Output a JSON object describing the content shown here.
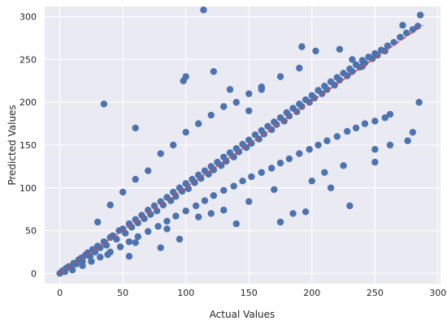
{
  "chart_data": {
    "type": "scatter",
    "title": "",
    "xlabel": "Actual Values",
    "ylabel": "Predicted Values",
    "xlim": [
      -12,
      302
    ],
    "ylim": [
      -12,
      312
    ],
    "xticks": [
      0,
      50,
      100,
      150,
      200,
      250,
      300
    ],
    "yticks": [
      0,
      50,
      100,
      150,
      200,
      250,
      300
    ],
    "grid": true,
    "point_color": "#4c72b0",
    "background_color": "#eaeaf2",
    "reference_line": {
      "style": "dashed",
      "color": "#c44e52",
      "from": [
        0,
        0
      ],
      "to": [
        288,
        290
      ]
    },
    "series": [
      {
        "points": [
          [
            0,
            0
          ],
          [
            2,
            3
          ],
          [
            4,
            2
          ],
          [
            5,
            6
          ],
          [
            7,
            8
          ],
          [
            9,
            7
          ],
          [
            11,
            12
          ],
          [
            13,
            11
          ],
          [
            15,
            16
          ],
          [
            17,
            18
          ],
          [
            18,
            14
          ],
          [
            20,
            21
          ],
          [
            22,
            24
          ],
          [
            24,
            20
          ],
          [
            26,
            28
          ],
          [
            28,
            25
          ],
          [
            30,
            32
          ],
          [
            32,
            30
          ],
          [
            35,
            37
          ],
          [
            37,
            33
          ],
          [
            40,
            42
          ],
          [
            42,
            44
          ],
          [
            45,
            40
          ],
          [
            47,
            50
          ],
          [
            50,
            52
          ],
          [
            52,
            47
          ],
          [
            55,
            58
          ],
          [
            57,
            54
          ],
          [
            60,
            63
          ],
          [
            62,
            59
          ],
          [
            65,
            68
          ],
          [
            67,
            64
          ],
          [
            70,
            74
          ],
          [
            72,
            69
          ],
          [
            75,
            79
          ],
          [
            77,
            73
          ],
          [
            80,
            84
          ],
          [
            82,
            80
          ],
          [
            85,
            89
          ],
          [
            88,
            85
          ],
          [
            90,
            95
          ],
          [
            92,
            90
          ],
          [
            95,
            100
          ],
          [
            97,
            96
          ],
          [
            100,
            105
          ],
          [
            102,
            99
          ],
          [
            105,
            110
          ],
          [
            107,
            106
          ],
          [
            110,
            115
          ],
          [
            112,
            111
          ],
          [
            115,
            120
          ],
          [
            118,
            116
          ],
          [
            120,
            125
          ],
          [
            122,
            121
          ],
          [
            125,
            130
          ],
          [
            128,
            126
          ],
          [
            130,
            136
          ],
          [
            132,
            131
          ],
          [
            135,
            141
          ],
          [
            138,
            136
          ],
          [
            140,
            146
          ],
          [
            142,
            142
          ],
          [
            145,
            151
          ],
          [
            148,
            147
          ],
          [
            150,
            156
          ],
          [
            152,
            152
          ],
          [
            155,
            162
          ],
          [
            158,
            157
          ],
          [
            160,
            167
          ],
          [
            162,
            163
          ],
          [
            165,
            172
          ],
          [
            168,
            168
          ],
          [
            170,
            177
          ],
          [
            172,
            174
          ],
          [
            175,
            182
          ],
          [
            178,
            178
          ],
          [
            180,
            188
          ],
          [
            182,
            184
          ],
          [
            185,
            193
          ],
          [
            188,
            189
          ],
          [
            190,
            198
          ],
          [
            192,
            195
          ],
          [
            195,
            203
          ],
          [
            198,
            200
          ],
          [
            200,
            208
          ],
          [
            202,
            205
          ],
          [
            205,
            214
          ],
          [
            208,
            210
          ],
          [
            210,
            219
          ],
          [
            212,
            215
          ],
          [
            215,
            224
          ],
          [
            218,
            220
          ],
          [
            220,
            229
          ],
          [
            222,
            226
          ],
          [
            225,
            234
          ],
          [
            228,
            231
          ],
          [
            230,
            239
          ],
          [
            232,
            236
          ],
          [
            235,
            244
          ],
          [
            238,
            241
          ],
          [
            240,
            249
          ],
          [
            242,
            246
          ],
          [
            245,
            253
          ],
          [
            248,
            251
          ],
          [
            250,
            257
          ],
          [
            252,
            255
          ],
          [
            255,
            261
          ],
          [
            258,
            260
          ],
          [
            260,
            266
          ],
          [
            265,
            270
          ],
          [
            270,
            276
          ],
          [
            275,
            281
          ],
          [
            280,
            285
          ],
          [
            284,
            289
          ],
          [
            10,
            4
          ],
          [
            18,
            9
          ],
          [
            25,
            14
          ],
          [
            32,
            19
          ],
          [
            40,
            25
          ],
          [
            48,
            31
          ],
          [
            55,
            37
          ],
          [
            62,
            43
          ],
          [
            70,
            49
          ],
          [
            78,
            55
          ],
          [
            85,
            61
          ],
          [
            92,
            67
          ],
          [
            100,
            73
          ],
          [
            108,
            79
          ],
          [
            115,
            85
          ],
          [
            122,
            91
          ],
          [
            130,
            97
          ],
          [
            138,
            102
          ],
          [
            145,
            108
          ],
          [
            152,
            113
          ],
          [
            160,
            118
          ],
          [
            168,
            123
          ],
          [
            175,
            129
          ],
          [
            182,
            134
          ],
          [
            190,
            140
          ],
          [
            198,
            145
          ],
          [
            205,
            150
          ],
          [
            212,
            155
          ],
          [
            220,
            160
          ],
          [
            228,
            166
          ],
          [
            235,
            170
          ],
          [
            242,
            175
          ],
          [
            250,
            178
          ],
          [
            258,
            182
          ],
          [
            262,
            186
          ],
          [
            30,
            60
          ],
          [
            40,
            80
          ],
          [
            50,
            95
          ],
          [
            60,
            110
          ],
          [
            70,
            120
          ],
          [
            80,
            140
          ],
          [
            90,
            150
          ],
          [
            100,
            165
          ],
          [
            110,
            175
          ],
          [
            120,
            185
          ],
          [
            130,
            195
          ],
          [
            140,
            200
          ],
          [
            150,
            210
          ],
          [
            160,
            218
          ],
          [
            175,
            230
          ],
          [
            190,
            240
          ],
          [
            38,
            22
          ],
          [
            60,
            36
          ],
          [
            85,
            52
          ],
          [
            110,
            66
          ],
          [
            130,
            74
          ],
          [
            150,
            84
          ],
          [
            170,
            98
          ],
          [
            200,
            108
          ],
          [
            225,
            126
          ],
          [
            35,
            198
          ],
          [
            60,
            170
          ],
          [
            98,
            225
          ],
          [
            100,
            230
          ],
          [
            122,
            236
          ],
          [
            114,
            308
          ],
          [
            135,
            215
          ],
          [
            150,
            190
          ],
          [
            160,
            215
          ],
          [
            192,
            265
          ],
          [
            203,
            260
          ],
          [
            222,
            262
          ],
          [
            232,
            250
          ],
          [
            240,
            242
          ],
          [
            272,
            290
          ],
          [
            286,
            302
          ],
          [
            230,
            79
          ],
          [
            215,
            100
          ],
          [
            210,
            118
          ],
          [
            250,
            130
          ],
          [
            262,
            150
          ],
          [
            280,
            165
          ],
          [
            285,
            200
          ],
          [
            276,
            155
          ],
          [
            195,
            72
          ],
          [
            250,
            145
          ],
          [
            120,
            70
          ],
          [
            140,
            58
          ],
          [
            175,
            60
          ],
          [
            185,
            70
          ],
          [
            95,
            40
          ],
          [
            80,
            30
          ],
          [
            55,
            20
          ]
        ]
      }
    ]
  }
}
